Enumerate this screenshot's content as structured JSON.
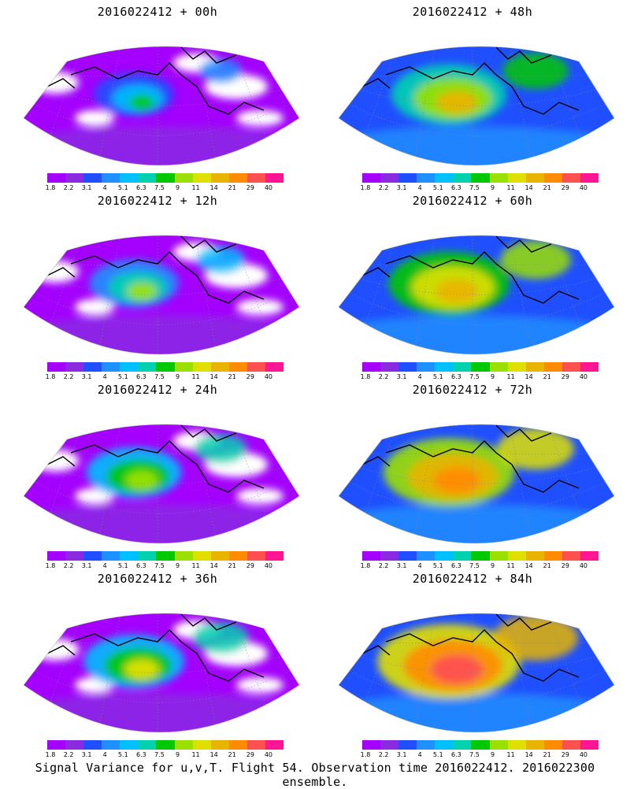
{
  "panels": [
    {
      "title": "2016022412 + 00h",
      "intensity": 0.18
    },
    {
      "title": "2016022412 + 48h",
      "intensity": 0.55
    },
    {
      "title": "2016022412 + 12h",
      "intensity": 0.28
    },
    {
      "title": "2016022412 + 60h",
      "intensity": 0.62
    },
    {
      "title": "2016022412 + 24h",
      "intensity": 0.34
    },
    {
      "title": "2016022412 + 72h",
      "intensity": 0.72
    },
    {
      "title": "2016022412 + 36h",
      "intensity": 0.4
    },
    {
      "title": "2016022412 + 84h",
      "intensity": 0.85
    }
  ],
  "colorbar": {
    "colors": [
      "#a300ff",
      "#8a2be2",
      "#1f4fff",
      "#1e90ff",
      "#00bfff",
      "#00d2b0",
      "#00c800",
      "#9be000",
      "#e0e000",
      "#e8b400",
      "#ff8c00",
      "#ff5050",
      "#ff1493"
    ],
    "labels": [
      "1.8",
      "2.2",
      "3.1",
      "4",
      "5.1",
      "6.3",
      "7.5",
      "9",
      "11",
      "14",
      "21",
      "29",
      "40"
    ]
  },
  "caption": "Signal Variance for u,v,T. Flight 54. Observation time 2016022412. 2016022300 ensemble."
}
